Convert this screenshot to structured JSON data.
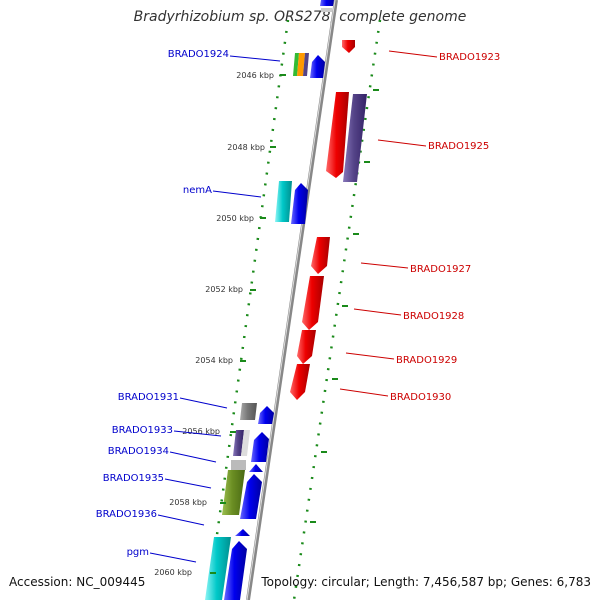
{
  "title": "Bradyrhizobium sp. ORS278, complete genome",
  "footer": {
    "accession": "Accession: NC_009445",
    "topology": "Topology: circular; Length: 7,456,587 bp; Genes: 6,783"
  },
  "colors": {
    "forward_label": "#0000cc",
    "reverse_label": "#cc0000",
    "forward_gene": "#0000ee",
    "reverse_gene": "#ee0000",
    "backbone": "#888888",
    "dotted_track": "#1a8a1a",
    "cog_cyan": "#00c8c8",
    "cog_purple": "#554488",
    "cog_olive": "#6b8e23",
    "cog_gray": "#777777"
  },
  "axis": {
    "ticks": [
      "2046 kbp",
      "2048 kbp",
      "2050 kbp",
      "2052 kbp",
      "2054 kbp",
      "2056 kbp",
      "2058 kbp",
      "2060 kbp"
    ]
  },
  "forward_labels": [
    "BRADO1924",
    "nemA",
    "BRADO1931",
    "BRADO1933",
    "BRADO1934",
    "BRADO1935",
    "BRADO1936",
    "pgm"
  ],
  "reverse_labels": [
    "BRADO1923",
    "BRADO1925",
    "BRADO1927",
    "BRADO1928",
    "BRADO1929",
    "BRADO1930"
  ]
}
